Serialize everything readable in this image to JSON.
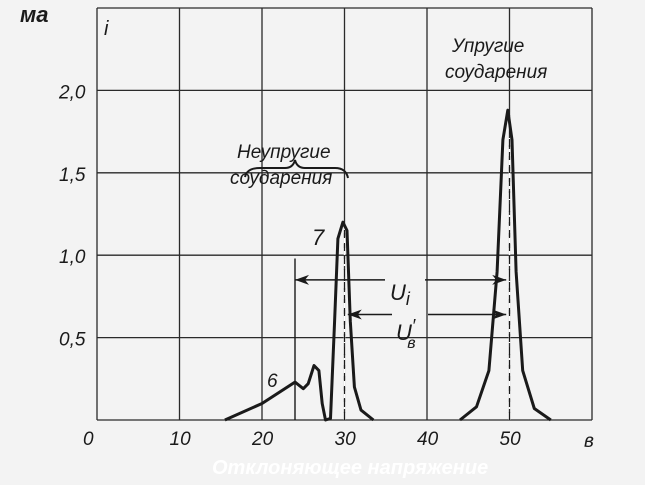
{
  "chart_data": {
    "type": "line",
    "title": "",
    "xlabel": "Отклоняющее напряжение",
    "xunit": "в",
    "ylabel": "i",
    "yunit": "ма",
    "xlim": [
      0,
      60
    ],
    "ylim": [
      0,
      2.5
    ],
    "grid": true,
    "xticks": [
      {
        "v": 0,
        "label": "0"
      },
      {
        "v": 10,
        "label": "10"
      },
      {
        "v": 20,
        "label": "20"
      },
      {
        "v": 30,
        "label": "30"
      },
      {
        "v": 40,
        "label": "40"
      },
      {
        "v": 50,
        "label": "50"
      }
    ],
    "yticks": [
      {
        "v": 0.5,
        "label": "0,5"
      },
      {
        "v": 1.0,
        "label": "1,0"
      },
      {
        "v": 1.5,
        "label": "1,5"
      },
      {
        "v": 2.0,
        "label": "2,0"
      }
    ],
    "xgrid": [
      10,
      20,
      30,
      40,
      50,
      60
    ],
    "ygrid": [
      0.5,
      1.0,
      1.5,
      2.0,
      2.5
    ],
    "series": [
      {
        "points": [
          [
            15.5,
            0
          ],
          [
            20,
            0.1
          ],
          [
            24,
            0.23
          ],
          [
            25,
            0.19
          ],
          [
            25.6,
            0.22
          ],
          [
            26.3,
            0.33
          ],
          [
            26.9,
            0.3
          ],
          [
            27.3,
            0.1
          ],
          [
            27.7,
            0
          ],
          [
            28.3,
            0.01
          ],
          [
            28.8,
            0.6
          ],
          [
            29.2,
            1.1
          ],
          [
            29.8,
            1.2
          ],
          [
            30.3,
            1.15
          ],
          [
            30.7,
            0.6
          ],
          [
            31.2,
            0.2
          ],
          [
            32,
            0.06
          ],
          [
            33.5,
            0
          ]
        ]
      },
      {
        "points": [
          [
            44,
            0
          ],
          [
            46,
            0.08
          ],
          [
            47.5,
            0.3
          ],
          [
            48.5,
            0.9
          ],
          [
            49.2,
            1.7
          ],
          [
            49.8,
            1.88
          ],
          [
            50.3,
            1.7
          ],
          [
            50.8,
            0.9
          ],
          [
            51.6,
            0.3
          ],
          [
            53,
            0.07
          ],
          [
            55,
            0
          ]
        ]
      }
    ],
    "dashed_lines_x": [
      30,
      50
    ],
    "marker_line_x": 24,
    "annotations": {
      "inelastic_line1": "Неупругие",
      "inelastic_line2": "соударения",
      "elastic_line1": "Упругие",
      "elastic_line2": "соударения",
      "peak6": "6",
      "peak7": "7",
      "ui": "U",
      "ui_sub": "i",
      "ub": "U",
      "ub_sub": "в",
      "ub_prime": "′"
    },
    "arrows": [
      {
        "name": "Ui",
        "from": 24,
        "to": 49.6,
        "y": 0.85
      },
      {
        "name": "U'в",
        "from": 30.4,
        "to": 49.6,
        "y": 0.64
      }
    ],
    "colors": {
      "ink": "#1a1a1a",
      "paper": "#f3f3f3"
    }
  }
}
